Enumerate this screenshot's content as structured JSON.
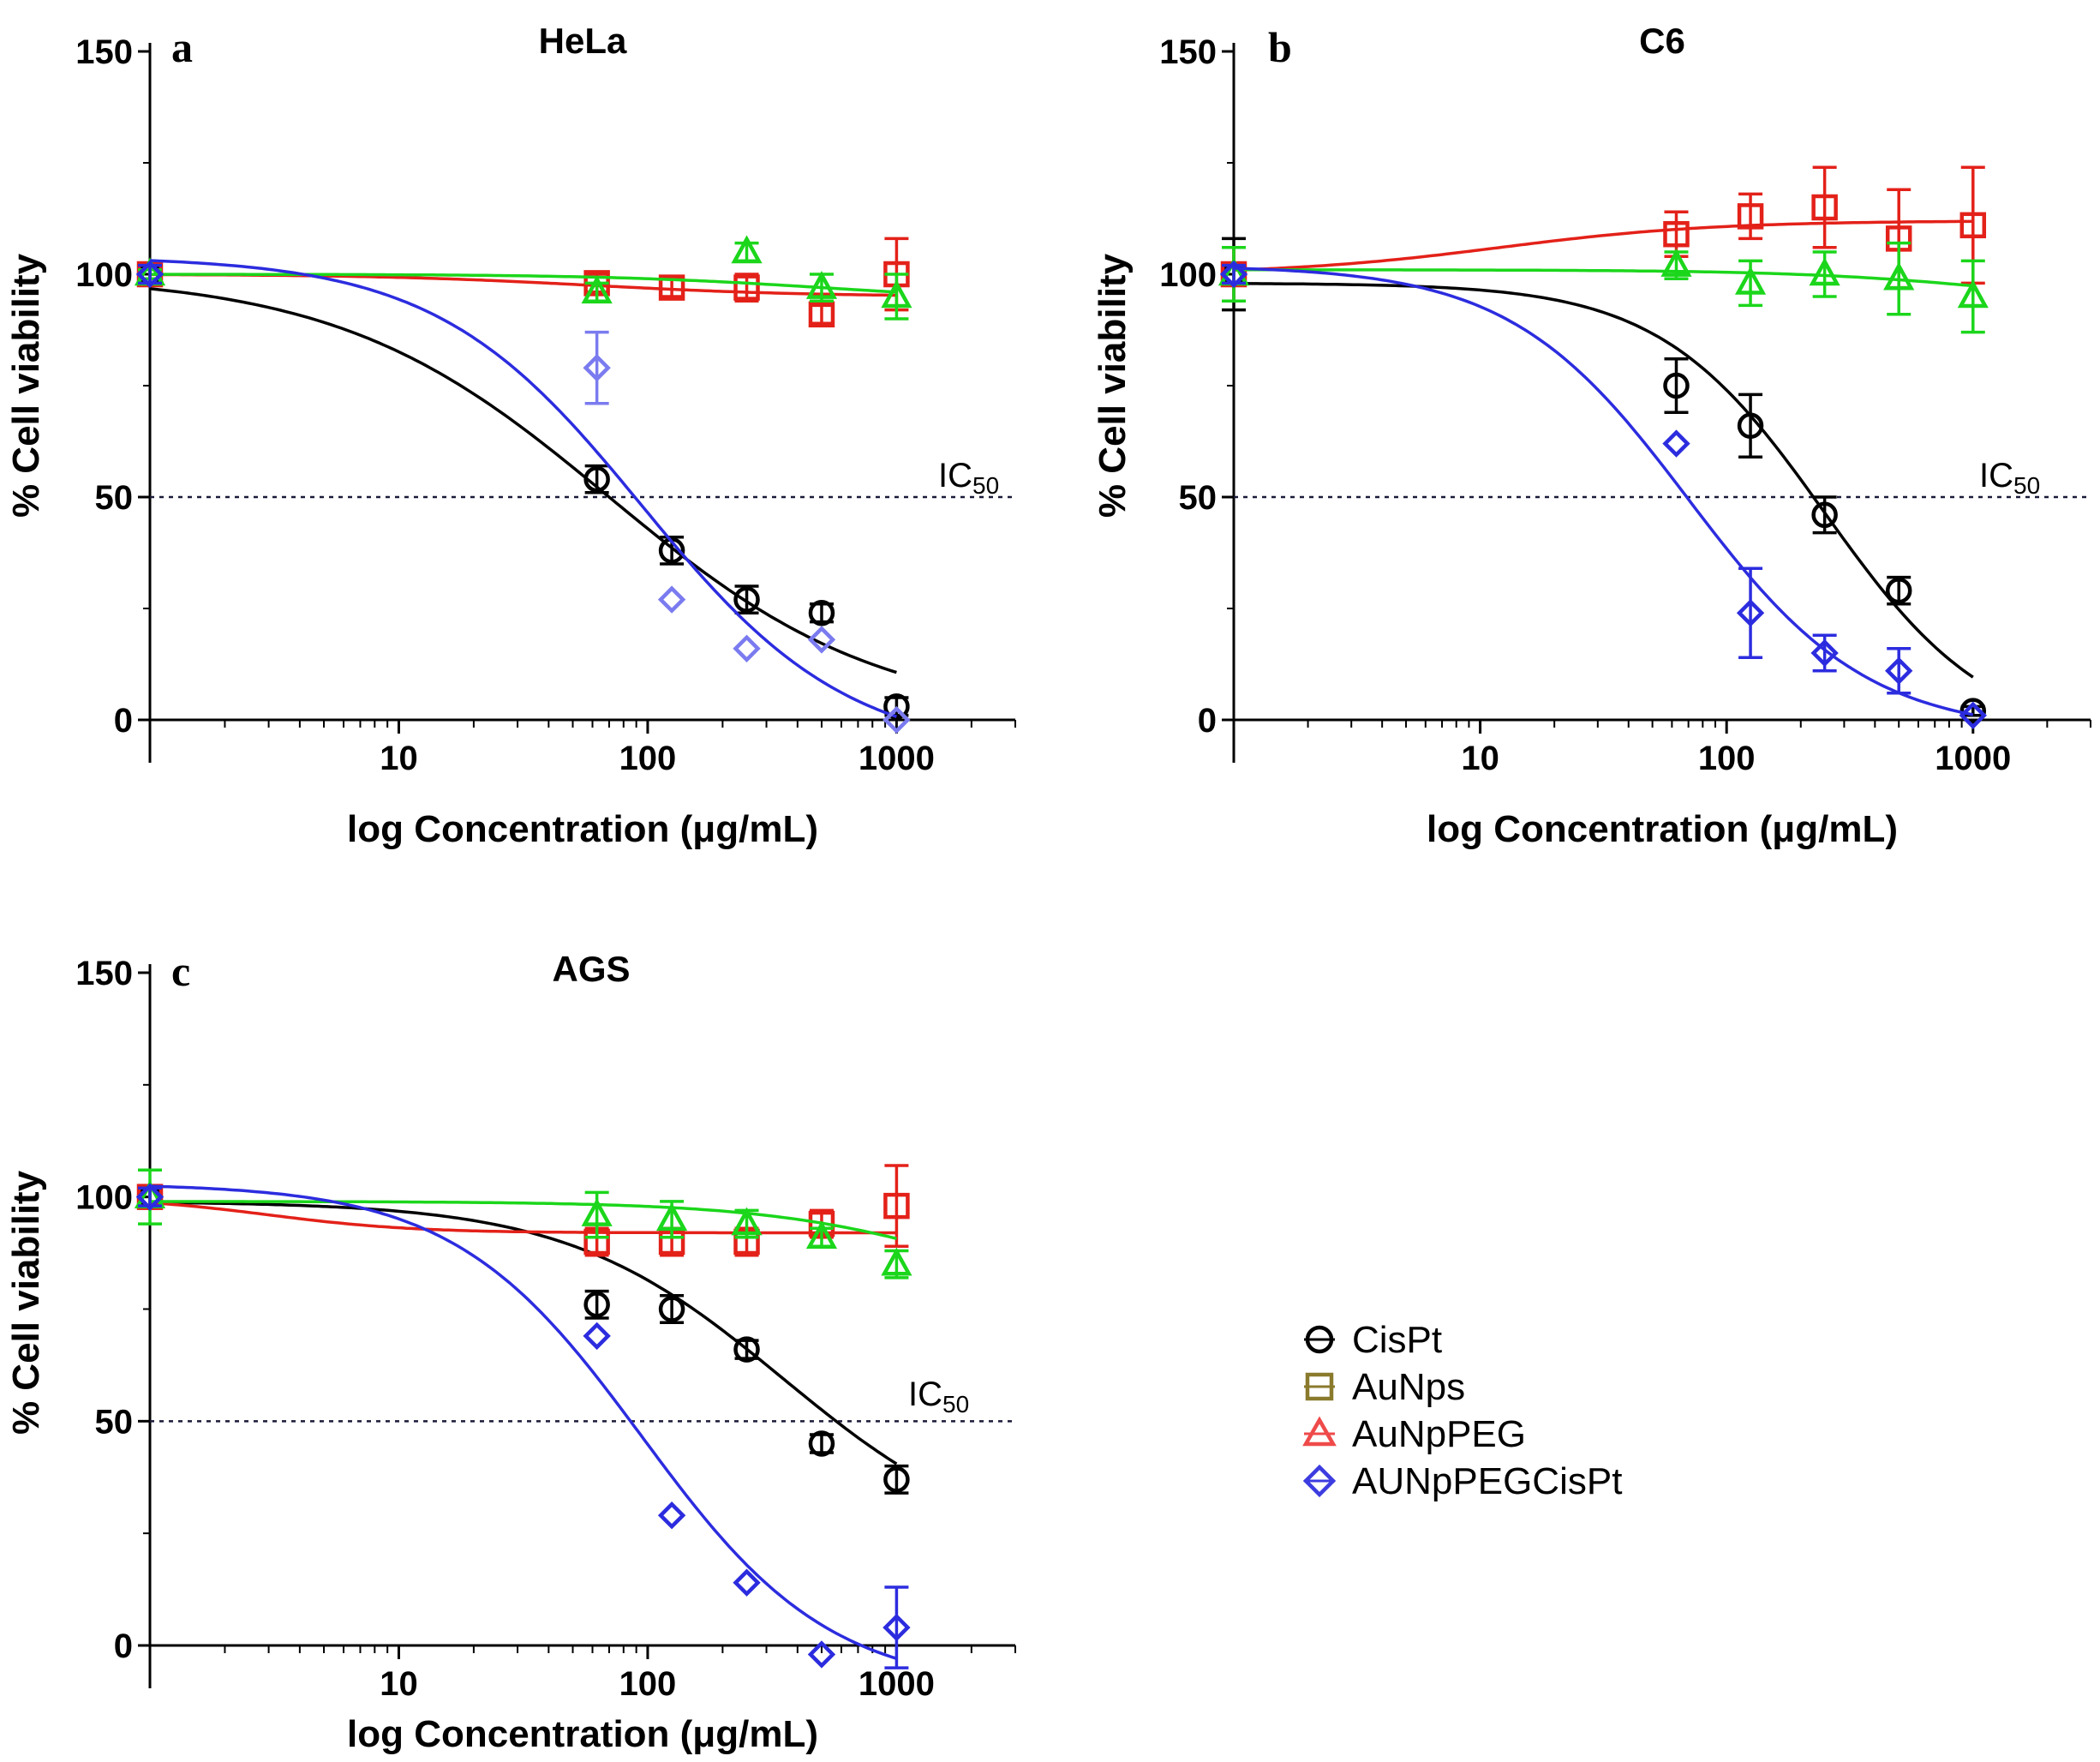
{
  "figure": {
    "legend": [
      {
        "label": "CisPt",
        "color": "#000000",
        "marker": "circle",
        "legend_marker_color": "#000000"
      },
      {
        "label": "AuNps",
        "color": "#e32119",
        "marker": "square",
        "legend_marker_color": "#8a7a2c"
      },
      {
        "label": "AuNpPEG",
        "color": "#1bd61b",
        "marker": "triangle",
        "legend_marker_color": "#ef4a4a"
      },
      {
        "label": "AUNpPEGCisPt",
        "color": "#2c2cdf",
        "marker": "diamond",
        "legend_marker_color": "#3c3ce0"
      }
    ]
  },
  "chart_data": [
    {
      "type": "scatter",
      "panel": "a",
      "title": "HeLa",
      "xlabel": "log Concentration (μg/mL)",
      "ylabel": "% Cell viability",
      "xscale": "log",
      "xlim": [
        1,
        3000
      ],
      "ylim": [
        0,
        150
      ],
      "xticks": [
        10,
        100,
        1000
      ],
      "xtick_labels": [
        "10",
        "100",
        "1000"
      ],
      "yticks": [
        0,
        50,
        100,
        150
      ],
      "ytick_labels": [
        "0",
        "50",
        "100",
        "150"
      ],
      "reference_line": {
        "y": 50,
        "label_main": "IC",
        "label_sub": "50"
      },
      "series": [
        {
          "name": "CisPt",
          "color": "#000000",
          "marker": "circle",
          "x": [
            1,
            62.5,
            125,
            250,
            500,
            1000
          ],
          "y": [
            100,
            54,
            38,
            27,
            24,
            3
          ],
          "err": [
            2,
            3,
            3,
            3,
            2,
            2
          ],
          "fit": {
            "top": 100,
            "bottom": 0,
            "ec50": 70,
            "hill": 0.8,
            "xmax": 1000
          }
        },
        {
          "name": "AuNps",
          "color": "#e32119",
          "marker": "square",
          "x": [
            1,
            62.5,
            125,
            250,
            500,
            1000
          ],
          "y": [
            100,
            98,
            97,
            97,
            91,
            100
          ],
          "err": [
            1,
            2,
            2,
            3,
            2,
            8
          ],
          "fit": {
            "top": 100,
            "bottom": 95,
            "ec50": 60,
            "hill": 1,
            "xmax": 1000
          }
        },
        {
          "name": "AuNpPEG",
          "color": "#1bd61b",
          "marker": "triangle",
          "x": [
            1,
            62.5,
            250,
            500,
            1000
          ],
          "y": [
            100,
            96,
            105,
            97,
            95
          ],
          "err": [
            1,
            2,
            2,
            3,
            5
          ],
          "fit": {
            "top": 100,
            "bottom": 94,
            "ec50": 500,
            "hill": 1,
            "xmax": 1000
          }
        },
        {
          "name": "AUNpPEGCisPt",
          "color": "#2c2cdf",
          "marker": "diamond",
          "light": "#7b7bf0",
          "x": [
            1,
            62.5,
            125,
            250,
            500,
            1000
          ],
          "y": [
            100,
            79,
            27,
            16,
            18,
            0
          ],
          "err": [
            2,
            8,
            0,
            0,
            0,
            0
          ],
          "fit": {
            "top": 104,
            "bottom": -8,
            "ec50": 95,
            "hill": 1.05,
            "xmax": 1000
          }
        }
      ]
    },
    {
      "type": "scatter",
      "panel": "b",
      "title": "C6",
      "xlabel": "log Concentration (μg/mL)",
      "ylabel": "% Cell viability",
      "xscale": "log",
      "xlim": [
        1,
        3000
      ],
      "ylim": [
        0,
        150
      ],
      "xticks": [
        10,
        100,
        1000
      ],
      "xtick_labels": [
        "10",
        "100",
        "1000"
      ],
      "yticks": [
        0,
        50,
        100,
        150
      ],
      "ytick_labels": [
        "0",
        "50",
        "100",
        "150"
      ],
      "reference_line": {
        "y": 50,
        "label_main": "IC",
        "label_sub": "50"
      },
      "series": [
        {
          "name": "CisPt",
          "color": "#000000",
          "marker": "circle",
          "x": [
            1,
            62.5,
            125,
            250,
            500,
            1000
          ],
          "y": [
            100,
            75,
            66,
            46,
            29,
            2
          ],
          "err": [
            8,
            6,
            7,
            4,
            3,
            1
          ],
          "fit": {
            "top": 98,
            "bottom": -5,
            "ec50": 250,
            "hill": 1.3,
            "xmax": 1000
          }
        },
        {
          "name": "AuNps",
          "color": "#e32119",
          "marker": "square",
          "x": [
            1,
            62.5,
            125,
            250,
            500,
            1000
          ],
          "y": [
            100,
            109,
            113,
            115,
            108,
            111
          ],
          "err": [
            6,
            5,
            5,
            9,
            11,
            13
          ],
          "fit": {
            "top": 100,
            "bottom": 112,
            "ec50": 12,
            "hill": 1,
            "xmax": 1000
          }
        },
        {
          "name": "AuNpPEG",
          "color": "#1bd61b",
          "marker": "triangle",
          "x": [
            1,
            62.5,
            125,
            250,
            500,
            1000
          ],
          "y": [
            100,
            102,
            98,
            100,
            99,
            95
          ],
          "err": [
            6,
            3,
            5,
            5,
            8,
            8
          ],
          "fit": {
            "top": 101,
            "bottom": 92,
            "ec50": 1500,
            "hill": 1,
            "xmax": 1000
          }
        },
        {
          "name": "AUNpPEGCisPt",
          "color": "#2c2cdf",
          "marker": "diamond",
          "light": "#2c2cdf",
          "x": [
            1,
            62.5,
            125,
            250,
            500,
            1000
          ],
          "y": [
            100,
            62,
            24,
            15,
            11,
            1
          ],
          "err": [
            2,
            0,
            10,
            4,
            5,
            0
          ],
          "fit": {
            "top": 102,
            "bottom": -3,
            "ec50": 70,
            "hill": 1.2,
            "xmax": 1000
          }
        }
      ]
    },
    {
      "type": "scatter",
      "panel": "c",
      "title": "AGS",
      "xlabel": "log Concentration (μg/mL)",
      "ylabel": "% Cell viability",
      "xscale": "log",
      "xlim": [
        1,
        3000
      ],
      "ylim": [
        0,
        150
      ],
      "xticks": [
        10,
        100,
        1000
      ],
      "xtick_labels": [
        "10",
        "100",
        "1000"
      ],
      "yticks": [
        0,
        50,
        100,
        150
      ],
      "ytick_labels": [
        "0",
        "50",
        "100",
        "150"
      ],
      "reference_line": {
        "y": 50,
        "label_main": "IC",
        "label_sub": "50"
      },
      "series": [
        {
          "name": "CisPt",
          "color": "#000000",
          "marker": "circle",
          "x": [
            1,
            62.5,
            125,
            250,
            500,
            1000
          ],
          "y": [
            100,
            76,
            75,
            66,
            45,
            37
          ],
          "err": [
            2,
            3,
            3,
            2,
            2,
            3
          ],
          "fit": {
            "top": 99,
            "bottom": 20,
            "ec50": 350,
            "hill": 1,
            "xmax": 1000
          }
        },
        {
          "name": "AuNps",
          "color": "#e32119",
          "marker": "square",
          "x": [
            1,
            62.5,
            125,
            250,
            500,
            1000
          ],
          "y": [
            100,
            90,
            90,
            90,
            94,
            98
          ],
          "err": [
            2,
            3,
            3,
            3,
            3,
            9
          ],
          "fit": {
            "top": 100,
            "bottom": 92,
            "ec50": 3,
            "hill": 1.5,
            "xmax": 1000
          }
        },
        {
          "name": "AuNpPEG",
          "color": "#1bd61b",
          "marker": "triangle",
          "x": [
            1,
            62.5,
            125,
            250,
            500,
            1000
          ],
          "y": [
            100,
            96,
            95,
            94,
            91,
            85
          ],
          "err": [
            6,
            5,
            4,
            3,
            2,
            3
          ],
          "fit": {
            "top": 99,
            "bottom": 70,
            "ec50": 2500,
            "hill": 1,
            "xmax": 1000
          }
        },
        {
          "name": "AUNpPEGCisPt",
          "color": "#2c2cdf",
          "marker": "diamond",
          "light": "#2c2cdf",
          "x": [
            1,
            62.5,
            125,
            250,
            500,
            1000
          ],
          "y": [
            100,
            69,
            29,
            14,
            -2,
            4
          ],
          "err": [
            2,
            0,
            0,
            0,
            0,
            9
          ],
          "fit": {
            "top": 103,
            "bottom": -10,
            "ec50": 95,
            "hill": 1.15,
            "xmax": 1000
          }
        }
      ]
    }
  ]
}
